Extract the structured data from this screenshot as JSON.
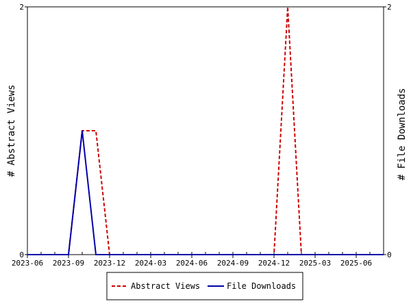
{
  "chart_data": {
    "type": "line",
    "ylabel_left": "# Abstract Views",
    "ylabel_right": "# File Downloads",
    "ylim_left": [
      0,
      2
    ],
    "ylim_right": [
      0,
      2
    ],
    "x_range": [
      "2023-06",
      "2025-08"
    ],
    "x_tick_labels": [
      "2023-06",
      "2023-09",
      "2023-12",
      "2024-03",
      "2024-06",
      "2024-09",
      "2024-12",
      "2025-03",
      "2025-06"
    ],
    "y_tick_labels_left": [
      "0",
      "2"
    ],
    "y_tick_labels_right": [
      "0",
      "2"
    ],
    "grid": false,
    "legend_position": "bottom-center",
    "x": [
      "2023-06",
      "2023-07",
      "2023-08",
      "2023-09",
      "2023-10",
      "2023-11",
      "2023-12",
      "2024-01",
      "2024-02",
      "2024-03",
      "2024-04",
      "2024-05",
      "2024-06",
      "2024-07",
      "2024-08",
      "2024-09",
      "2024-10",
      "2024-11",
      "2024-12",
      "2025-01",
      "2025-02",
      "2025-03",
      "2025-04",
      "2025-05",
      "2025-06",
      "2025-07",
      "2025-08"
    ],
    "series": [
      {
        "name": "Abstract Views",
        "axis": "left",
        "color": "#cc0000",
        "dash": "dashed",
        "values": [
          0,
          0,
          0,
          0,
          1,
          1,
          0,
          0,
          0,
          0,
          0,
          0,
          0,
          0,
          0,
          0,
          0,
          0,
          0,
          2,
          0,
          0,
          0,
          0,
          0,
          0,
          0
        ]
      },
      {
        "name": "File Downloads",
        "axis": "right",
        "color": "#0000aa",
        "dash": "solid",
        "values": [
          0,
          0,
          0,
          0,
          1,
          0,
          0,
          0,
          0,
          0,
          0,
          0,
          0,
          0,
          0,
          0,
          0,
          0,
          0,
          0,
          0,
          0,
          0,
          0,
          0,
          0,
          0
        ]
      }
    ]
  }
}
